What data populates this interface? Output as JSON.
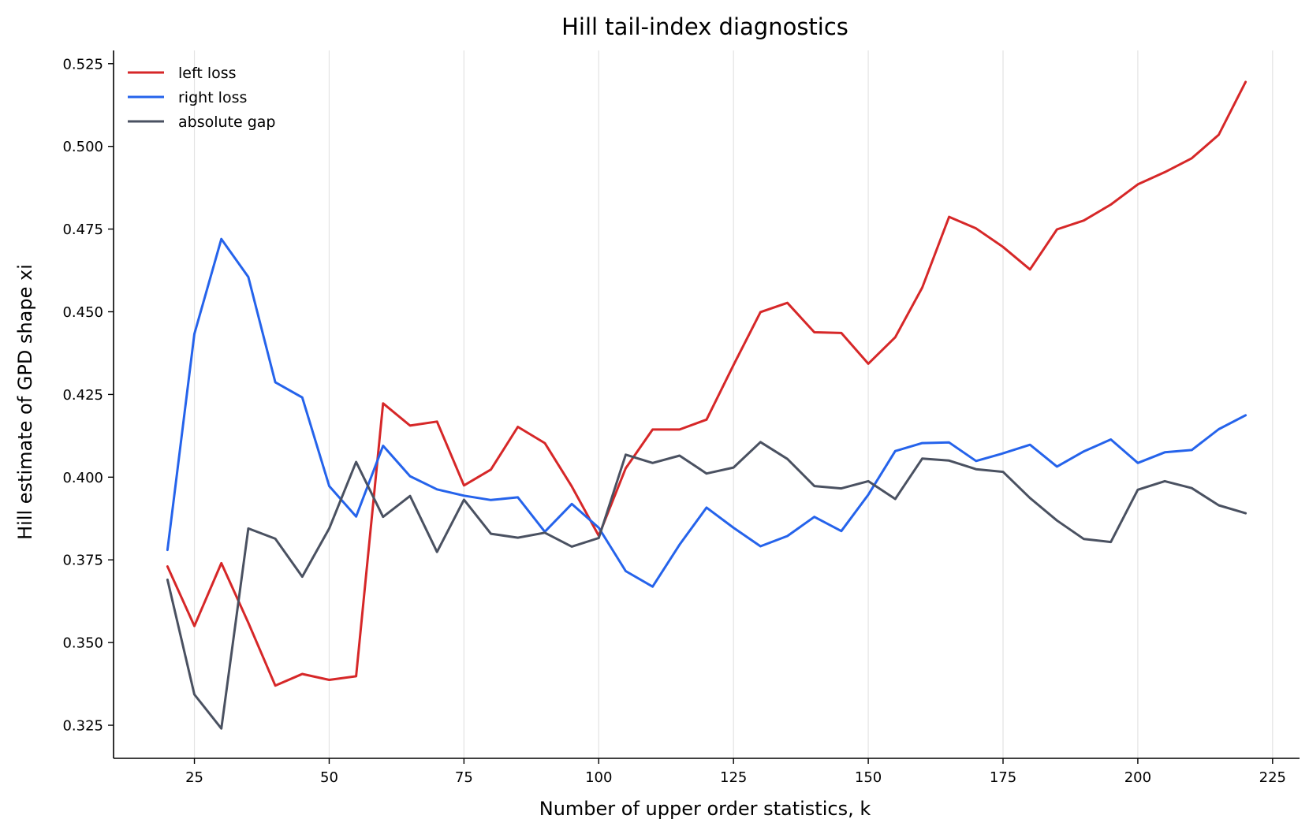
{
  "chart_data": {
    "type": "line",
    "title": "Hill tail-index diagnostics",
    "xlabel": "Number of upper order statistics, k",
    "ylabel": "Hill estimate of GPD shape xi",
    "xlim": [
      10,
      230
    ],
    "ylim": [
      0.315,
      0.529
    ],
    "xticks": [
      25,
      50,
      75,
      100,
      125,
      150,
      175,
      200,
      225
    ],
    "yticks": [
      0.325,
      0.35,
      0.375,
      0.4,
      0.425,
      0.45,
      0.475,
      0.5,
      0.525
    ],
    "grid": "vertical",
    "legend_position": "top-left",
    "x": [
      20,
      25,
      30,
      35,
      40,
      45,
      50,
      55,
      60,
      65,
      70,
      75,
      80,
      85,
      90,
      95,
      100,
      105,
      110,
      115,
      120,
      125,
      130,
      135,
      140,
      145,
      150,
      155,
      160,
      165,
      170,
      175,
      180,
      185,
      190,
      195,
      200,
      205,
      210,
      215,
      220
    ],
    "series": [
      {
        "name": "left loss",
        "color": "#d62728",
        "values": [
          0.373,
          0.355,
          0.374,
          0.356,
          0.337,
          0.3405,
          0.3387,
          0.3398,
          0.4223,
          0.4156,
          0.4168,
          0.3975,
          0.4023,
          0.4152,
          0.4103,
          0.3972,
          0.3823,
          0.4027,
          0.4144,
          0.4144,
          0.4174,
          0.4339,
          0.4499,
          0.4527,
          0.4438,
          0.4436,
          0.4343,
          0.4423,
          0.4573,
          0.4787,
          0.4752,
          0.4696,
          0.4628,
          0.4749,
          0.4776,
          0.4824,
          0.4885,
          0.4922,
          0.4964,
          0.5035,
          0.5195
        ]
      },
      {
        "name": "right loss",
        "color": "#2563eb",
        "values": [
          0.378,
          0.4433,
          0.472,
          0.4605,
          0.4287,
          0.4241,
          0.3973,
          0.3881,
          0.4095,
          0.4003,
          0.3963,
          0.3944,
          0.3931,
          0.3939,
          0.3835,
          0.3919,
          0.3847,
          0.3716,
          0.3669,
          0.3796,
          0.3908,
          0.3847,
          0.3791,
          0.3822,
          0.388,
          0.3837,
          0.3947,
          0.4079,
          0.4103,
          0.4105,
          0.4049,
          0.4072,
          0.4098,
          0.4032,
          0.4078,
          0.4114,
          0.4043,
          0.4075,
          0.4082,
          0.4145,
          0.4187
        ]
      },
      {
        "name": "absolute gap",
        "color": "#4a5161",
        "values": [
          0.369,
          0.3343,
          0.324,
          0.3845,
          0.3814,
          0.3699,
          0.3845,
          0.4046,
          0.388,
          0.3943,
          0.3774,
          0.3932,
          0.3829,
          0.3817,
          0.3832,
          0.379,
          0.3816,
          0.4068,
          0.4043,
          0.4065,
          0.4011,
          0.4029,
          0.4106,
          0.4055,
          0.3973,
          0.3966,
          0.3988,
          0.3934,
          0.4056,
          0.405,
          0.4024,
          0.4016,
          0.3937,
          0.3869,
          0.3813,
          0.3804,
          0.3962,
          0.3988,
          0.3967,
          0.3915,
          0.3891
        ]
      }
    ]
  }
}
